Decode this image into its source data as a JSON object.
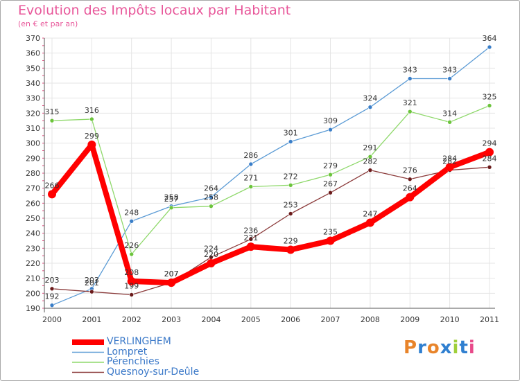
{
  "chart_data": {
    "type": "line",
    "title": "Evolution des Impôts locaux par Habitant",
    "subtitle": "(en € et par an)",
    "xlabel": "",
    "ylabel": "",
    "categories": [
      "2000",
      "2001",
      "2002",
      "2003",
      "2004",
      "2005",
      "2006",
      "2007",
      "2008",
      "2009",
      "2010",
      "2011"
    ],
    "ylim": [
      190,
      370
    ],
    "yticks": [
      190,
      200,
      210,
      220,
      230,
      240,
      250,
      260,
      270,
      280,
      290,
      300,
      310,
      320,
      330,
      340,
      350,
      360,
      370
    ],
    "grid": true,
    "legend_position": "bottom-left",
    "series": [
      {
        "name": "Lompret",
        "color": "#5b9bd5",
        "point_color": "#3a7ec8",
        "values": [
          192,
          203,
          248,
          258,
          264,
          286,
          301,
          309,
          324,
          343,
          343,
          364
        ],
        "labels": [
          "192",
          "203",
          "248",
          "258",
          "264",
          "286",
          "301",
          "309",
          "324",
          "343",
          "343",
          "364"
        ]
      },
      {
        "name": "Pérenchies",
        "color": "#8ed86a",
        "point_color": "#6cc43c",
        "values": [
          315,
          316,
          226,
          257,
          258,
          271,
          272,
          279,
          291,
          321,
          314,
          325
        ],
        "labels": [
          "315",
          "316",
          "226",
          "257",
          "258",
          "271",
          "272",
          "279",
          "291",
          "321",
          "314",
          "325"
        ]
      },
      {
        "name": "Quesnoy-sur-Deûle",
        "color": "#8b3a3a",
        "point_color": "#6a1a1a",
        "values": [
          203,
          201,
          199,
          207,
          224,
          236,
          253,
          267,
          282,
          276,
          282,
          284
        ],
        "labels": [
          "203",
          "201",
          "199",
          "207",
          "224",
          "236",
          "253",
          "267",
          "282",
          "276",
          "282",
          "284"
        ]
      },
      {
        "name": "VERLINGHEM",
        "color": "#ff0000",
        "point_color": "#ff0000",
        "values": [
          266,
          299,
          208,
          207,
          220,
          231,
          229,
          235,
          247,
          264,
          284,
          294
        ],
        "labels": [
          "266",
          "299",
          "208",
          "207",
          "220",
          "231",
          "229",
          "235",
          "247",
          "264",
          "284",
          "294"
        ]
      }
    ],
    "legend_order": [
      "VERLINGHEM",
      "Lompret",
      "Pérenchies",
      "Quesnoy-sur-Deûle"
    ]
  },
  "logo": {
    "text": "Proxiti",
    "letter_colors": [
      "#e8842a",
      "#2f7fd0",
      "#e8842a",
      "#2f7fd0",
      "#9fcf3a",
      "#2f7fd0",
      "#e84a8a"
    ]
  }
}
